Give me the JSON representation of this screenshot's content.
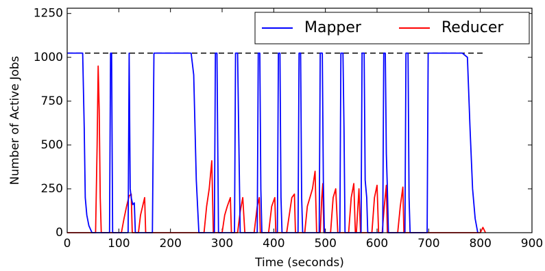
{
  "chart_data": {
    "type": "line",
    "x_label": "Time (seconds)",
    "y_label": "Number of Active Jobs",
    "xlim": [
      0,
      900
    ],
    "xticks": [
      0,
      100,
      200,
      300,
      400,
      500,
      600,
      700,
      800,
      900
    ],
    "ylim": [
      0,
      1280
    ],
    "yticks": [
      0,
      250,
      500,
      750,
      1000,
      1250
    ],
    "legend": "upper right",
    "legend_columns": 2,
    "reference_line": {
      "y": 1024,
      "x": [
        0,
        805
      ],
      "color": "#000000",
      "dashed": true
    },
    "series": [
      {
        "name": "Mapper",
        "color": "#0000ff",
        "x": [
          0,
          30,
          33,
          35,
          38,
          42,
          48,
          82,
          84,
          86,
          88,
          118,
          120,
          122,
          124,
          127,
          130,
          132,
          165,
          168,
          240,
          245,
          250,
          255,
          285,
          287,
          290,
          293,
          324,
          326,
          330,
          332,
          335,
          368,
          370,
          373,
          375,
          377,
          407,
          409,
          412,
          414,
          416,
          447,
          449,
          452,
          454,
          456,
          488,
          490,
          494,
          496,
          498,
          528,
          530,
          534,
          536,
          538,
          569,
          571,
          575,
          577,
          580,
          582,
          611,
          613,
          616,
          618,
          620,
          622,
          654,
          656,
          660,
          662,
          664,
          697,
          699,
          765,
          775,
          780,
          785,
          790,
          795
        ],
        "values": [
          1024,
          1024,
          600,
          200,
          100,
          40,
          0,
          0,
          1024,
          1024,
          0,
          0,
          1024,
          250,
          200,
          160,
          170,
          0,
          0,
          1024,
          1024,
          900,
          300,
          0,
          0,
          1024,
          1024,
          0,
          0,
          1024,
          1024,
          600,
          0,
          0,
          1024,
          1024,
          250,
          0,
          0,
          1024,
          1024,
          200,
          0,
          0,
          1024,
          1024,
          200,
          0,
          0,
          1024,
          1024,
          300,
          0,
          0,
          1024,
          1024,
          600,
          0,
          0,
          1024,
          1024,
          300,
          200,
          0,
          0,
          1024,
          1024,
          450,
          250,
          0,
          0,
          1024,
          1024,
          200,
          0,
          0,
          1024,
          1024,
          1000,
          600,
          250,
          80,
          0
        ]
      },
      {
        "name": "Reducer",
        "color": "#ff0000",
        "x": [
          0,
          55,
          58,
          60,
          62,
          64,
          66,
          105,
          110,
          115,
          120,
          124,
          126,
          138,
          142,
          146,
          150,
          152,
          265,
          270,
          275,
          280,
          283,
          300,
          305,
          310,
          316,
          318,
          330,
          335,
          340,
          344,
          362,
          368,
          372,
          374,
          390,
          396,
          402,
          404,
          425,
          430,
          435,
          440,
          442,
          460,
          465,
          470,
          475,
          480,
          483,
          490,
          493,
          495,
          497,
          510,
          515,
          520,
          524,
          545,
          550,
          555,
          558,
          560,
          565,
          568,
          590,
          595,
          600,
          603,
          610,
          614,
          618,
          620,
          640,
          645,
          650,
          652,
          800,
          805,
          810
        ],
        "values": [
          0,
          0,
          500,
          950,
          700,
          200,
          0,
          0,
          80,
          150,
          210,
          220,
          0,
          0,
          100,
          150,
          200,
          0,
          0,
          150,
          250,
          410,
          0,
          0,
          100,
          150,
          200,
          0,
          0,
          120,
          200,
          0,
          0,
          150,
          200,
          0,
          0,
          150,
          200,
          0,
          0,
          100,
          200,
          220,
          0,
          0,
          150,
          200,
          250,
          350,
          0,
          0,
          200,
          280,
          0,
          0,
          200,
          250,
          0,
          0,
          200,
          280,
          0,
          0,
          250,
          0,
          0,
          200,
          270,
          0,
          0,
          150,
          270,
          0,
          0,
          150,
          260,
          0,
          0,
          30,
          0
        ]
      }
    ]
  }
}
